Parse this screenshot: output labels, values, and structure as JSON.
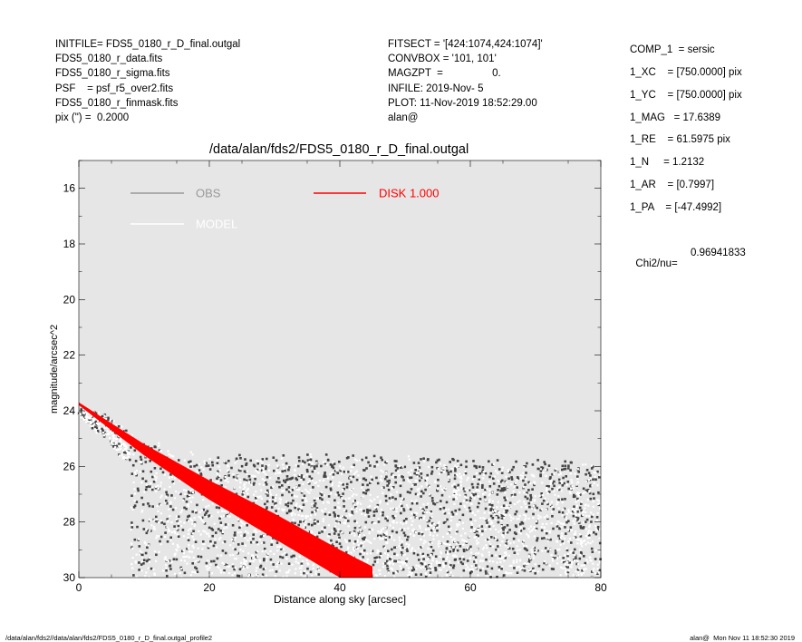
{
  "header": {
    "left": [
      "INITFILE= FDS5_0180_r_D_final.outgal",
      "FDS5_0180_r_data.fits",
      "FDS5_0180_r_sigma.fits",
      "PSF    = psf_r5_over2.fits",
      "FDS5_0180_r_finmask.fits",
      "pix (\") =  0.2000"
    ],
    "middle": [
      "FITSECT = '[424:1074,424:1074]'",
      "CONVBOX = '101, 101'",
      "MAGZPT  =                 0.",
      "INFILE: 2019-Nov- 5",
      "PLOT: 11-Nov-2019 18:52:29.00",
      "alan@"
    ]
  },
  "params": [
    "COMP_1  = sersic",
    "1_XC    = [750.0000] pix",
    "1_YC    = [750.0000] pix",
    "1_MAG   = 17.6389",
    "1_RE    = 61.5975 pix",
    "1_N     = 1.2132",
    "1_AR    = [0.7997]",
    "1_PA    = [-47.4992]"
  ],
  "chi2": {
    "label": "Chi2/nu=",
    "value": "0.96941833"
  },
  "footer": {
    "left": "/data/alan/fds2//data/alan/fds2/FDS5_0180_r_D_final.outgal_profile2",
    "right": "alan@  Mon Nov 11 18:52:30 2019"
  },
  "chart_data": {
    "type": "scatter",
    "title": "/data/alan/fds2/FDS5_0180_r_D_final.outgal",
    "xlabel": "Distance along sky [arcsec]",
    "ylabel": "magnitude/arcsec^2",
    "xlim": [
      0,
      80
    ],
    "ylim": [
      30,
      15
    ],
    "y_inverted": true,
    "xticks": [
      0,
      20,
      40,
      60,
      80
    ],
    "yticks": [
      16,
      18,
      20,
      22,
      24,
      26,
      28,
      30
    ],
    "background": "#e6e6e6",
    "legend": [
      {
        "name": "OBS",
        "color": "#999999"
      },
      {
        "name": "MODEL",
        "color": "#ffffff"
      },
      {
        "name": "DISK  1.000",
        "color": "#ff0000"
      }
    ],
    "series": [
      {
        "name": "OBS",
        "color": "#444444",
        "trend": {
          "x": [
            0,
            4,
            8,
            12,
            16,
            20,
            30,
            45,
            60,
            80
          ],
          "y": [
            23.9,
            24.2,
            24.8,
            25.3,
            25.6,
            25.7,
            25.7,
            25.7,
            25.8,
            26.0
          ]
        },
        "band_lower_max": 30
      },
      {
        "name": "MODEL",
        "color": "#ffffff",
        "trend": {
          "x": [
            0,
            4,
            8,
            12,
            16,
            20,
            30,
            45,
            60,
            80
          ],
          "y": [
            23.9,
            24.2,
            24.8,
            25.3,
            25.6,
            25.7,
            25.7,
            25.7,
            25.8,
            26.0
          ]
        },
        "band_lower_max": 30
      },
      {
        "name": "DISK",
        "color": "#ff0000",
        "x": [
          0,
          10,
          20,
          30,
          40,
          45
        ],
        "y_upper": [
          23.7,
          25.2,
          26.5,
          27.7,
          29.0,
          29.6
        ],
        "y_lower": [
          23.8,
          25.6,
          27.2,
          28.6,
          30.0,
          30.5
        ]
      }
    ]
  }
}
